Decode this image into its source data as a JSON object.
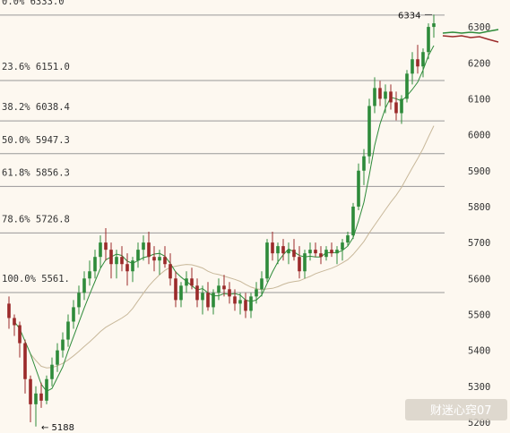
{
  "chart_data": {
    "type": "candlestick",
    "ylim": [
      5175,
      6350
    ],
    "yticks": [
      "6300",
      "6200",
      "6100",
      "6000",
      "5900",
      "5800",
      "5700",
      "5600",
      "5500",
      "5400",
      "5300",
      "5200"
    ],
    "fib_levels": [
      {
        "label": "0.0% 6333.0",
        "value": 6333.0
      },
      {
        "label": "23.6% 6151.0",
        "value": 6151.0
      },
      {
        "label": "38.2% 6038.4",
        "value": 6038.4
      },
      {
        "label": "50.0% 5947.3",
        "value": 5947.3
      },
      {
        "label": "61.8% 5856.3",
        "value": 5856.3
      },
      {
        "label": "78.6% 5726.8",
        "value": 5726.8
      },
      {
        "label": "100.0% 5561.",
        "value": 5561.0
      }
    ],
    "annotations": {
      "high": "6334",
      "low": "5188"
    },
    "colors": {
      "up": "#2e8b3a",
      "down": "#9b2a2a",
      "ma_fast": "#2e8b3a",
      "ma_slow": "#c8b89a",
      "grid": "#999999"
    },
    "candles": [
      [
        5530,
        5550,
        5460,
        5490
      ],
      [
        5490,
        5500,
        5440,
        5470
      ],
      [
        5470,
        5480,
        5380,
        5420
      ],
      [
        5420,
        5430,
        5280,
        5320
      ],
      [
        5320,
        5330,
        5200,
        5250
      ],
      [
        5250,
        5300,
        5188,
        5280
      ],
      [
        5280,
        5310,
        5240,
        5260
      ],
      [
        5260,
        5330,
        5250,
        5320
      ],
      [
        5320,
        5380,
        5300,
        5360
      ],
      [
        5360,
        5420,
        5340,
        5400
      ],
      [
        5400,
        5450,
        5380,
        5430
      ],
      [
        5430,
        5500,
        5410,
        5480
      ],
      [
        5480,
        5540,
        5460,
        5520
      ],
      [
        5520,
        5580,
        5500,
        5560
      ],
      [
        5560,
        5620,
        5540,
        5600
      ],
      [
        5600,
        5650,
        5580,
        5620
      ],
      [
        5620,
        5680,
        5600,
        5660
      ],
      [
        5660,
        5720,
        5630,
        5700
      ],
      [
        5700,
        5740,
        5650,
        5680
      ],
      [
        5680,
        5700,
        5600,
        5640
      ],
      [
        5640,
        5680,
        5600,
        5660
      ],
      [
        5660,
        5690,
        5620,
        5640
      ],
      [
        5640,
        5670,
        5580,
        5620
      ],
      [
        5620,
        5660,
        5590,
        5650
      ],
      [
        5650,
        5700,
        5630,
        5680
      ],
      [
        5680,
        5720,
        5650,
        5700
      ],
      [
        5700,
        5730,
        5640,
        5660
      ],
      [
        5660,
        5690,
        5620,
        5650
      ],
      [
        5650,
        5680,
        5610,
        5660
      ],
      [
        5660,
        5690,
        5630,
        5640
      ],
      [
        5640,
        5670,
        5580,
        5600
      ],
      [
        5600,
        5620,
        5520,
        5540
      ],
      [
        5540,
        5590,
        5520,
        5580
      ],
      [
        5580,
        5620,
        5560,
        5600
      ],
      [
        5600,
        5630,
        5570,
        5580
      ],
      [
        5580,
        5600,
        5520,
        5540
      ],
      [
        5540,
        5580,
        5500,
        5560
      ],
      [
        5560,
        5590,
        5510,
        5520
      ],
      [
        5520,
        5570,
        5500,
        5560
      ],
      [
        5560,
        5600,
        5540,
        5580
      ],
      [
        5580,
        5610,
        5550,
        5570
      ],
      [
        5570,
        5590,
        5530,
        5550
      ],
      [
        5550,
        5570,
        5510,
        5530
      ],
      [
        5530,
        5560,
        5500,
        5540
      ],
      [
        5540,
        5560,
        5490,
        5510
      ],
      [
        5510,
        5560,
        5490,
        5550
      ],
      [
        5550,
        5590,
        5530,
        5570
      ],
      [
        5570,
        5620,
        5550,
        5600
      ],
      [
        5600,
        5710,
        5590,
        5700
      ],
      [
        5700,
        5730,
        5650,
        5670
      ],
      [
        5670,
        5700,
        5640,
        5690
      ],
      [
        5690,
        5710,
        5650,
        5670
      ],
      [
        5670,
        5700,
        5640,
        5680
      ],
      [
        5680,
        5710,
        5650,
        5660
      ],
      [
        5660,
        5690,
        5600,
        5620
      ],
      [
        5620,
        5680,
        5600,
        5670
      ],
      [
        5670,
        5700,
        5650,
        5680
      ],
      [
        5680,
        5700,
        5660,
        5670
      ],
      [
        5670,
        5690,
        5640,
        5660
      ],
      [
        5660,
        5690,
        5650,
        5680
      ],
      [
        5680,
        5700,
        5660,
        5670
      ],
      [
        5670,
        5690,
        5640,
        5680
      ],
      [
        5680,
        5710,
        5650,
        5700
      ],
      [
        5700,
        5730,
        5690,
        5720
      ],
      [
        5720,
        5810,
        5710,
        5800
      ],
      [
        5800,
        5920,
        5790,
        5900
      ],
      [
        5900,
        5960,
        5860,
        5940
      ],
      [
        5940,
        6100,
        5920,
        6080
      ],
      [
        6080,
        6160,
        6060,
        6130
      ],
      [
        6130,
        6150,
        6080,
        6100
      ],
      [
        6100,
        6140,
        6060,
        6120
      ],
      [
        6120,
        6140,
        6070,
        6090
      ],
      [
        6090,
        6120,
        6040,
        6060
      ],
      [
        6060,
        6110,
        6030,
        6100
      ],
      [
        6100,
        6180,
        6090,
        6170
      ],
      [
        6170,
        6230,
        6140,
        6210
      ],
      [
        6210,
        6250,
        6170,
        6190
      ],
      [
        6190,
        6240,
        6160,
        6230
      ],
      [
        6230,
        6310,
        6210,
        6300
      ],
      [
        6300,
        6334,
        6270,
        6310
      ]
    ]
  }
}
